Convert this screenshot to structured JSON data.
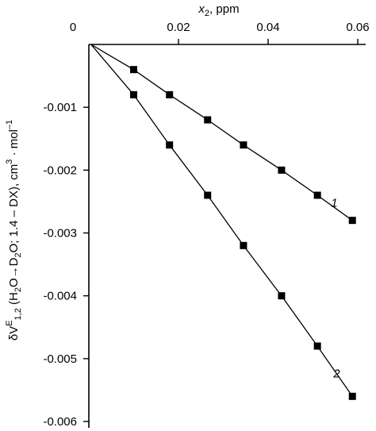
{
  "chart_data": {
    "type": "line",
    "xlabel": "x",
    "xlabel_sub": "2",
    "xlabel_unit": ", ppm",
    "ylabel": {
      "prefix": "δV",
      "sup": "E",
      "sub": "1,2",
      "part1": " (H",
      "sub_h2o": "2",
      "part2": "O→D",
      "sub_d2o": "2",
      "part3": "O; 1.4 – DX), cm",
      "sup_cm": "3",
      "part4": " · mol",
      "sup_mol": "–1"
    },
    "xlim": [
      0,
      0.06
    ],
    "ylim": [
      -0.006,
      0
    ],
    "x_ticks": [
      0,
      0.02,
      0.04,
      0.06
    ],
    "x_tick_labels": [
      "0",
      "0.02",
      "0.04",
      "0.06"
    ],
    "y_ticks": [
      -0.001,
      -0.002,
      -0.003,
      -0.004,
      -0.005,
      -0.006
    ],
    "y_tick_labels": [
      "-0.001",
      "-0.002",
      "-0.003",
      "-0.004",
      "-0.005",
      "-0.006"
    ],
    "x_axis_position": "top",
    "grid": false,
    "marker": "square",
    "color": "#000000",
    "series": [
      {
        "label": "1",
        "x": [
          0.0005,
          0.01,
          0.018,
          0.0265,
          0.0345,
          0.043,
          0.051,
          0.0588
        ],
        "y": [
          0,
          -0.0004,
          -0.0008,
          -0.0012,
          -0.0016,
          -0.002,
          -0.0024,
          -0.0028
        ]
      },
      {
        "label": "2",
        "x": [
          0.0005,
          0.01,
          0.018,
          0.0265,
          0.0345,
          0.043,
          0.051,
          0.0588
        ],
        "y": [
          0,
          -0.0008,
          -0.0016,
          -0.0024,
          -0.0032,
          -0.004,
          -0.0048,
          -0.0056
        ]
      }
    ]
  }
}
